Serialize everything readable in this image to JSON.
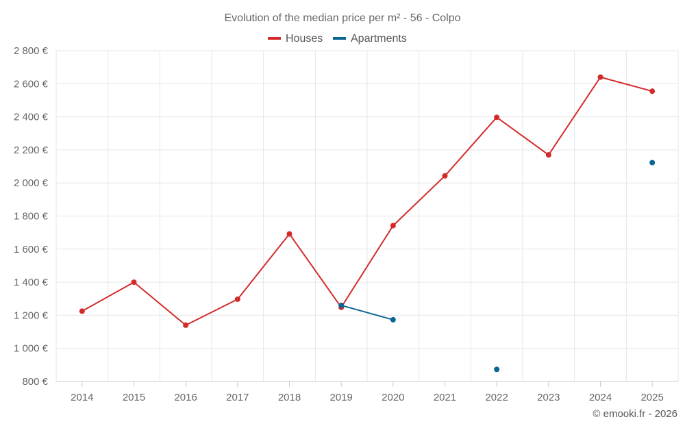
{
  "chart_data": {
    "type": "line",
    "title": "Evolution of the median price per m² - 56 - Colpo",
    "categories": [
      "2014",
      "2015",
      "2016",
      "2017",
      "2018",
      "2019",
      "2020",
      "2021",
      "2022",
      "2023",
      "2024",
      "2025"
    ],
    "series": [
      {
        "name": "Houses",
        "color": "#d42a2a",
        "values": [
          1225,
          1400,
          1140,
          1297,
          1692,
          1248,
          1742,
          2043,
          2397,
          2170,
          2640,
          2555
        ]
      },
      {
        "name": "Apartments",
        "color": "#0b6594",
        "values": [
          null,
          null,
          null,
          null,
          null,
          1260,
          1173,
          null,
          873,
          null,
          null,
          2123
        ]
      }
    ],
    "yticks": [
      800,
      1000,
      1200,
      1400,
      1600,
      1800,
      2000,
      2200,
      2400,
      2600,
      2800
    ],
    "ytick_labels": [
      "800 €",
      "1 000 €",
      "1 200 €",
      "1 400 €",
      "1 600 €",
      "1 800 €",
      "2 000 €",
      "2 200 €",
      "2 400 €",
      "2 600 €",
      "2 800 €"
    ],
    "ylim": [
      800,
      2800
    ],
    "xlabel": "",
    "ylabel": "",
    "grid": true,
    "legend_position": "top-center",
    "credit": "© emooki.fr - 2026"
  }
}
